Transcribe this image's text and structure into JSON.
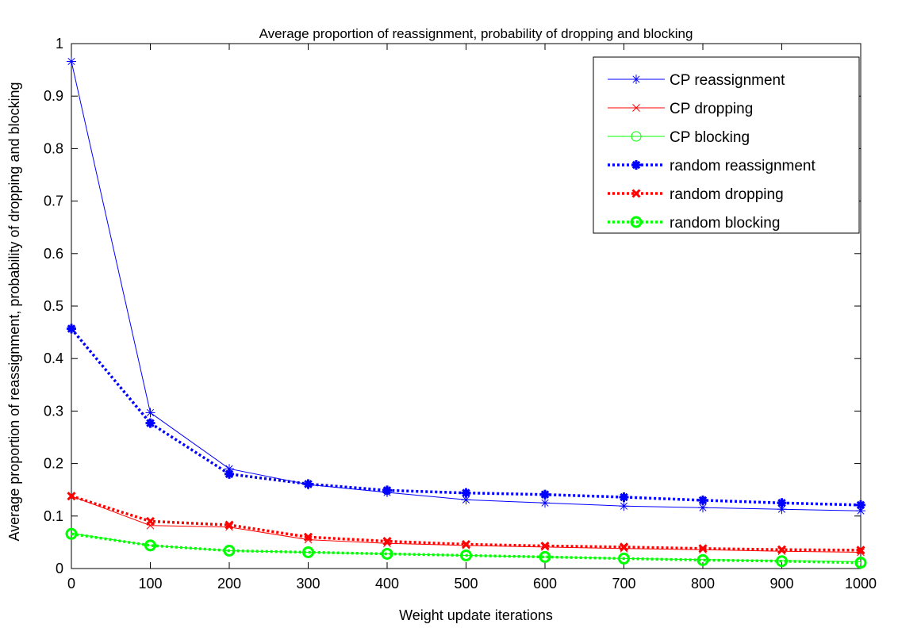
{
  "chart_data": {
    "type": "line",
    "title": "Average proportion of reassignment, probability of dropping and blocking",
    "xlabel": "Weight update iterations",
    "ylabel": "Average proportion of reassignment, probability of dropping and blocking",
    "xlim": [
      0,
      1000
    ],
    "ylim": [
      0,
      1
    ],
    "xticks": [
      0,
      100,
      200,
      300,
      400,
      500,
      600,
      700,
      800,
      900,
      1000
    ],
    "xtick_labels": [
      "0",
      "100",
      "200",
      "300",
      "400",
      "500",
      "600",
      "700",
      "800",
      "900",
      "1000"
    ],
    "yticks": [
      0,
      0.1,
      0.2,
      0.3,
      0.4,
      0.5,
      0.6,
      0.7,
      0.8,
      0.9,
      1
    ],
    "ytick_labels": [
      "0",
      "0.1",
      "0.2",
      "0.3",
      "0.4",
      "0.5",
      "0.6",
      "0.7",
      "0.8",
      "0.9",
      "1"
    ],
    "grid": false,
    "legend_position": "top-right",
    "x": [
      0,
      100,
      200,
      300,
      400,
      500,
      600,
      700,
      800,
      900,
      1000
    ],
    "series": [
      {
        "name": "CP reassignment",
        "values": [
          0.966,
          0.297,
          0.19,
          0.16,
          0.145,
          0.131,
          0.125,
          0.119,
          0.116,
          0.113,
          0.11
        ],
        "color": "#0000ff",
        "marker": "asterisk",
        "style": "solid",
        "width": "thin"
      },
      {
        "name": "CP dropping",
        "values": [
          0.138,
          0.082,
          0.079,
          0.055,
          0.048,
          0.044,
          0.041,
          0.038,
          0.036,
          0.033,
          0.031
        ],
        "color": "#ff0000",
        "marker": "x",
        "style": "solid",
        "width": "thin"
      },
      {
        "name": "CP blocking",
        "values": [
          0.067,
          0.044,
          0.034,
          0.031,
          0.028,
          0.025,
          0.022,
          0.019,
          0.017,
          0.015,
          0.013
        ],
        "color": "#00ff00",
        "marker": "circle",
        "style": "solid",
        "width": "thin"
      },
      {
        "name": "random reassignment",
        "values": [
          0.457,
          0.277,
          0.18,
          0.161,
          0.149,
          0.144,
          0.141,
          0.136,
          0.13,
          0.125,
          0.121
        ],
        "color": "#0000ff",
        "marker": "asterisk",
        "style": "dotted",
        "width": "thick"
      },
      {
        "name": "random dropping",
        "values": [
          0.138,
          0.09,
          0.083,
          0.06,
          0.052,
          0.046,
          0.043,
          0.041,
          0.038,
          0.036,
          0.035
        ],
        "color": "#ff0000",
        "marker": "x",
        "style": "dotted",
        "width": "thick"
      },
      {
        "name": "random blocking",
        "values": [
          0.066,
          0.044,
          0.034,
          0.031,
          0.028,
          0.025,
          0.022,
          0.019,
          0.016,
          0.014,
          0.011
        ],
        "color": "#00ff00",
        "marker": "circle",
        "style": "dotted",
        "width": "thick"
      }
    ]
  }
}
